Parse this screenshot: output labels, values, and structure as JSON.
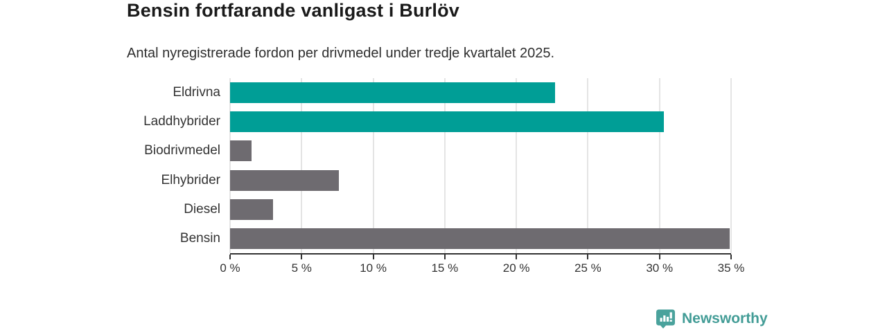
{
  "header": {
    "title": "Bensin fortfarande vanligast i Burlöv",
    "subtitle": "Antal nyregistrerade fordon per drivmedel under tredje kvartalet 2025."
  },
  "chart_data": {
    "type": "bar",
    "orientation": "horizontal",
    "title": "Bensin fortfarande vanligast i Burlöv",
    "subtitle": "Antal nyregistrerade fordon per drivmedel under tredje kvartalet 2025.",
    "categories": [
      "Eldrivna",
      "Laddhybrider",
      "Biodrivmedel",
      "Elhybrider",
      "Diesel",
      "Bensin"
    ],
    "values": [
      22.7,
      30.3,
      1.5,
      7.6,
      3.0,
      34.9
    ],
    "unit": "%",
    "bar_colors": [
      "#009e96",
      "#009e96",
      "#6e6b70",
      "#6e6b70",
      "#6e6b70",
      "#6e6b70"
    ],
    "xlabel": "",
    "ylabel": "",
    "xlim": [
      0,
      35
    ],
    "x_ticks": [
      {
        "label": "0 %",
        "value": 0
      },
      {
        "label": "5 %",
        "value": 5
      },
      {
        "label": "10 %",
        "value": 10
      },
      {
        "label": "15 %",
        "value": 15
      },
      {
        "label": "20 %",
        "value": 20
      },
      {
        "label": "25 %",
        "value": 25
      },
      {
        "label": "30 %",
        "value": 30
      },
      {
        "label": "35 %",
        "value": 35
      }
    ],
    "grid": "vertical",
    "legend": "none"
  },
  "colors": {
    "teal_bar": "#009e96",
    "gray_bar": "#6e6b70",
    "gridline": "#e4e4e4",
    "axis": "#333333",
    "title_text": "#1a1a1a",
    "label_text": "#333333",
    "brand": "#429c96"
  },
  "branding": {
    "logo_text": "Newsworthy",
    "logo_icon": "bar-chart-pin-icon"
  }
}
